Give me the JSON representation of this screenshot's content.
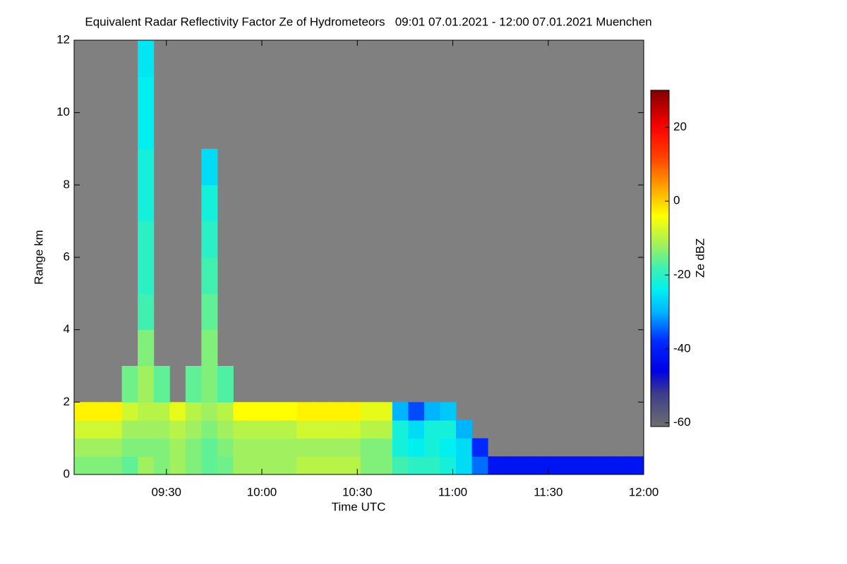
{
  "chart_data": {
    "type": "heatmap",
    "title": "Equivalent Radar Reflectivity Factor Ze of Hydrometeors   09:01 07.01.2021 - 12:00 07.01.2021 Muenchen",
    "x_label": "Time UTC",
    "y_label": "Range km",
    "colorbar_label": "Ze dBZ",
    "xlim": [
      541,
      720
    ],
    "xticks": [
      {
        "value": 570,
        "label": "09:30"
      },
      {
        "value": 600,
        "label": "10:00"
      },
      {
        "value": 630,
        "label": "10:30"
      },
      {
        "value": 660,
        "label": "11:00"
      },
      {
        "value": 690,
        "label": "11:30"
      },
      {
        "value": 720,
        "label": "12:00"
      }
    ],
    "ylim": [
      0,
      12
    ],
    "yticks": [
      0,
      2,
      4,
      6,
      8,
      10,
      12
    ],
    "zlim": [
      -61,
      30
    ],
    "zticks": [
      -60,
      -40,
      -20,
      0,
      20
    ],
    "background": "#808080",
    "colorscale": [
      [
        -61,
        "#6e6e6e"
      ],
      [
        -52,
        "#3c3c8c"
      ],
      [
        -46,
        "#0000e6"
      ],
      [
        -38,
        "#0028ff"
      ],
      [
        -30,
        "#00b4ff"
      ],
      [
        -24,
        "#00f0f0"
      ],
      [
        -18,
        "#40f0b0"
      ],
      [
        -12,
        "#a0f060"
      ],
      [
        -4,
        "#ffff00"
      ],
      [
        4,
        "#ffa000"
      ],
      [
        12,
        "#ff4000"
      ],
      [
        20,
        "#ff0000"
      ],
      [
        30,
        "#800000"
      ]
    ],
    "x_edges": [
      541,
      546,
      551,
      556,
      561,
      566,
      571,
      576,
      581,
      586,
      591,
      596,
      601,
      606,
      611,
      616,
      621,
      626,
      631,
      636,
      641,
      646,
      651,
      656,
      661,
      666,
      671,
      676,
      681,
      686,
      691,
      696,
      701,
      706,
      711,
      716,
      720
    ],
    "y_edges": [
      0,
      0.5,
      1,
      1.5,
      2,
      3,
      4,
      5,
      6,
      7,
      8,
      9,
      10,
      11,
      12
    ],
    "z": [
      [
        -14,
        -14,
        -14,
        -16,
        -12,
        -14,
        -12,
        -14,
        -16,
        -15,
        -12,
        -12,
        -12,
        -12,
        -10,
        -10,
        -10,
        -10,
        -14,
        -14,
        -18,
        -20,
        -20,
        -22,
        -26,
        -34,
        -42,
        -42,
        -42,
        -42,
        -42,
        -42,
        -42,
        -42,
        -42,
        -42
      ],
      [
        -12,
        -12,
        -12,
        -14,
        -14,
        -14,
        -12,
        -14,
        -16,
        -14,
        -12,
        -12,
        -12,
        -12,
        -12,
        -12,
        -12,
        -12,
        -14,
        -14,
        -22,
        -24,
        -22,
        -24,
        -26,
        -38,
        null,
        null,
        null,
        null,
        null,
        null,
        null,
        null,
        null,
        null
      ],
      [
        -8,
        -8,
        -8,
        -12,
        -12,
        -12,
        -10,
        -12,
        -14,
        -12,
        -10,
        -10,
        -10,
        -10,
        -8,
        -8,
        -8,
        -8,
        -10,
        -10,
        -22,
        -26,
        -22,
        -22,
        -30,
        null,
        null,
        null,
        null,
        null,
        null,
        null,
        null,
        null,
        null,
        null
      ],
      [
        -3,
        -3,
        -3,
        -8,
        -10,
        -10,
        -6,
        -10,
        -12,
        -10,
        -4,
        -4,
        -4,
        -4,
        -3,
        -3,
        -3,
        -3,
        -6,
        -6,
        -30,
        -36,
        -30,
        -28,
        null,
        null,
        null,
        null,
        null,
        null,
        null,
        null,
        null,
        null,
        null,
        null
      ],
      [
        null,
        null,
        null,
        -15,
        -12,
        -16,
        null,
        -16,
        -14,
        -17,
        null,
        null,
        null,
        null,
        null,
        null,
        null,
        null,
        null,
        null,
        null,
        null,
        null,
        null,
        null,
        null,
        null,
        null,
        null,
        null,
        null,
        null,
        null,
        null,
        null,
        null
      ],
      [
        null,
        null,
        null,
        null,
        -14,
        null,
        null,
        null,
        -14,
        null,
        null,
        null,
        null,
        null,
        null,
        null,
        null,
        null,
        null,
        null,
        null,
        null,
        null,
        null,
        null,
        null,
        null,
        null,
        null,
        null,
        null,
        null,
        null,
        null,
        null,
        null
      ],
      [
        null,
        null,
        null,
        null,
        -18,
        null,
        null,
        null,
        -16,
        null,
        null,
        null,
        null,
        null,
        null,
        null,
        null,
        null,
        null,
        null,
        null,
        null,
        null,
        null,
        null,
        null,
        null,
        null,
        null,
        null,
        null,
        null,
        null,
        null,
        null,
        null
      ],
      [
        null,
        null,
        null,
        null,
        -20,
        null,
        null,
        null,
        -18,
        null,
        null,
        null,
        null,
        null,
        null,
        null,
        null,
        null,
        null,
        null,
        null,
        null,
        null,
        null,
        null,
        null,
        null,
        null,
        null,
        null,
        null,
        null,
        null,
        null,
        null,
        null
      ],
      [
        null,
        null,
        null,
        null,
        -20,
        null,
        null,
        null,
        -20,
        null,
        null,
        null,
        null,
        null,
        null,
        null,
        null,
        null,
        null,
        null,
        null,
        null,
        null,
        null,
        null,
        null,
        null,
        null,
        null,
        null,
        null,
        null,
        null,
        null,
        null,
        null
      ],
      [
        null,
        null,
        null,
        null,
        -22,
        null,
        null,
        null,
        -22,
        null,
        null,
        null,
        null,
        null,
        null,
        null,
        null,
        null,
        null,
        null,
        null,
        null,
        null,
        null,
        null,
        null,
        null,
        null,
        null,
        null,
        null,
        null,
        null,
        null,
        null,
        null
      ],
      [
        null,
        null,
        null,
        null,
        -22,
        null,
        null,
        null,
        -26,
        null,
        null,
        null,
        null,
        null,
        null,
        null,
        null,
        null,
        null,
        null,
        null,
        null,
        null,
        null,
        null,
        null,
        null,
        null,
        null,
        null,
        null,
        null,
        null,
        null,
        null,
        null
      ],
      [
        null,
        null,
        null,
        null,
        -24,
        null,
        null,
        null,
        null,
        null,
        null,
        null,
        null,
        null,
        null,
        null,
        null,
        null,
        null,
        null,
        null,
        null,
        null,
        null,
        null,
        null,
        null,
        null,
        null,
        null,
        null,
        null,
        null,
        null,
        null,
        null
      ],
      [
        null,
        null,
        null,
        null,
        -24,
        null,
        null,
        null,
        null,
        null,
        null,
        null,
        null,
        null,
        null,
        null,
        null,
        null,
        null,
        null,
        null,
        null,
        null,
        null,
        null,
        null,
        null,
        null,
        null,
        null,
        null,
        null,
        null,
        null,
        null,
        null
      ],
      [
        null,
        null,
        null,
        null,
        -25,
        null,
        null,
        null,
        null,
        null,
        null,
        null,
        null,
        null,
        null,
        null,
        null,
        null,
        null,
        null,
        null,
        null,
        null,
        null,
        null,
        null,
        null,
        null,
        null,
        null,
        null,
        null,
        null,
        null,
        null,
        null
      ]
    ]
  }
}
